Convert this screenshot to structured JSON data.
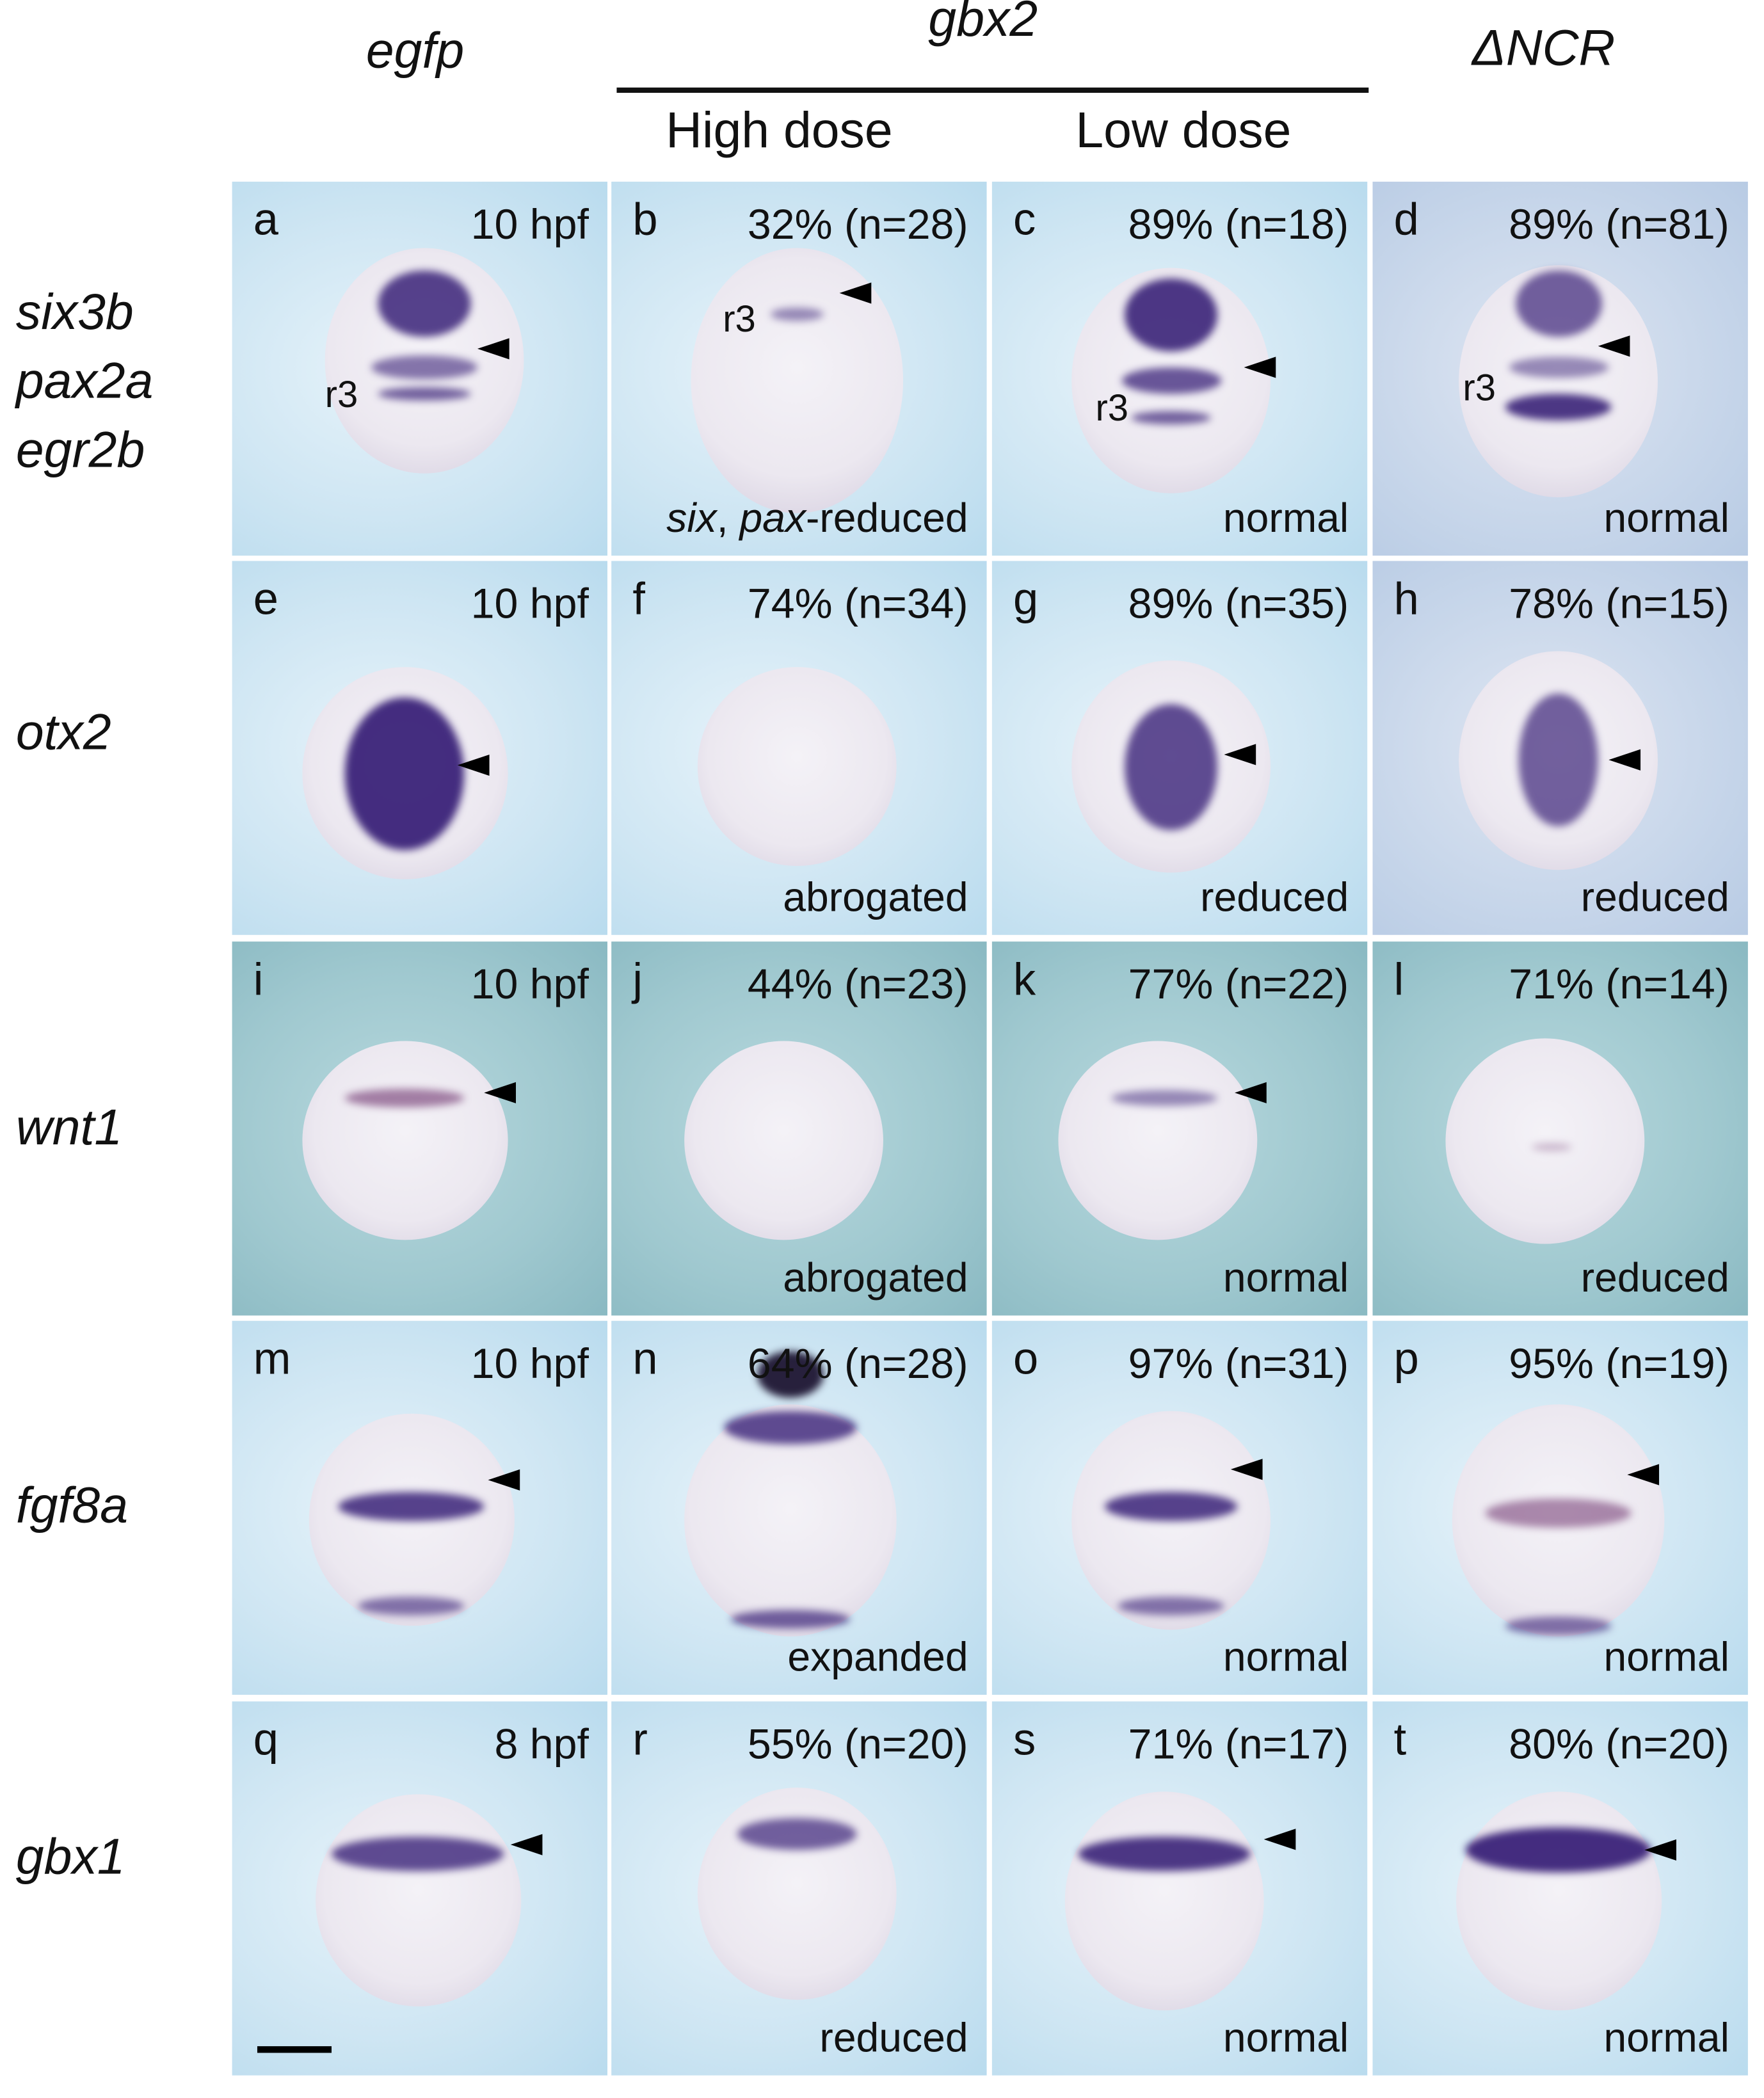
{
  "columns": {
    "egfp": "egfp",
    "gbx2": "gbx2",
    "high_dose": "High dose",
    "low_dose": "Low dose",
    "dncr": "ΔNCR"
  },
  "rows": [
    {
      "genes": [
        "six3b",
        "pax2a",
        "egr2b"
      ]
    },
    {
      "genes": [
        "otx2"
      ]
    },
    {
      "genes": [
        "wnt1"
      ]
    },
    {
      "genes": [
        "fgf8a"
      ]
    },
    {
      "genes": [
        "gbx1"
      ]
    }
  ],
  "panels": [
    {
      "letter": "a",
      "info": "10 hpf",
      "note": "",
      "r3": "r3"
    },
    {
      "letter": "b",
      "info": "32% (n=28)",
      "note_parts": [
        "six",
        ", ",
        "pax",
        "-reduced"
      ],
      "r3": "r3"
    },
    {
      "letter": "c",
      "info": "89% (n=18)",
      "note": "normal",
      "r3": "r3"
    },
    {
      "letter": "d",
      "info": "89% (n=81)",
      "note": "normal",
      "r3": "r3"
    },
    {
      "letter": "e",
      "info": "10 hpf",
      "note": ""
    },
    {
      "letter": "f",
      "info": "74% (n=34)",
      "note": "abrogated"
    },
    {
      "letter": "g",
      "info": "89% (n=35)",
      "note": "reduced"
    },
    {
      "letter": "h",
      "info": "78% (n=15)",
      "note": "reduced"
    },
    {
      "letter": "i",
      "info": "10 hpf",
      "note": ""
    },
    {
      "letter": "j",
      "info": "44% (n=23)",
      "note": "abrogated"
    },
    {
      "letter": "k",
      "info": "77% (n=22)",
      "note": "normal"
    },
    {
      "letter": "l",
      "info": "71% (n=14)",
      "note": "reduced"
    },
    {
      "letter": "m",
      "info": "10 hpf",
      "note": ""
    },
    {
      "letter": "n",
      "info": "64% (n=28)",
      "note": "expanded"
    },
    {
      "letter": "o",
      "info": "97% (n=31)",
      "note": "normal"
    },
    {
      "letter": "p",
      "info": "95% (n=19)",
      "note": "normal"
    },
    {
      "letter": "q",
      "info": "8 hpf",
      "note": ""
    },
    {
      "letter": "r",
      "info": "55% (n=20)",
      "note": "reduced"
    },
    {
      "letter": "s",
      "info": "71% (n=17)",
      "note": "normal"
    },
    {
      "letter": "t",
      "info": "80% (n=20)",
      "note": "normal"
    }
  ],
  "colors": {
    "stain": "#3a2a7a",
    "background": "#cfe6f3"
  }
}
